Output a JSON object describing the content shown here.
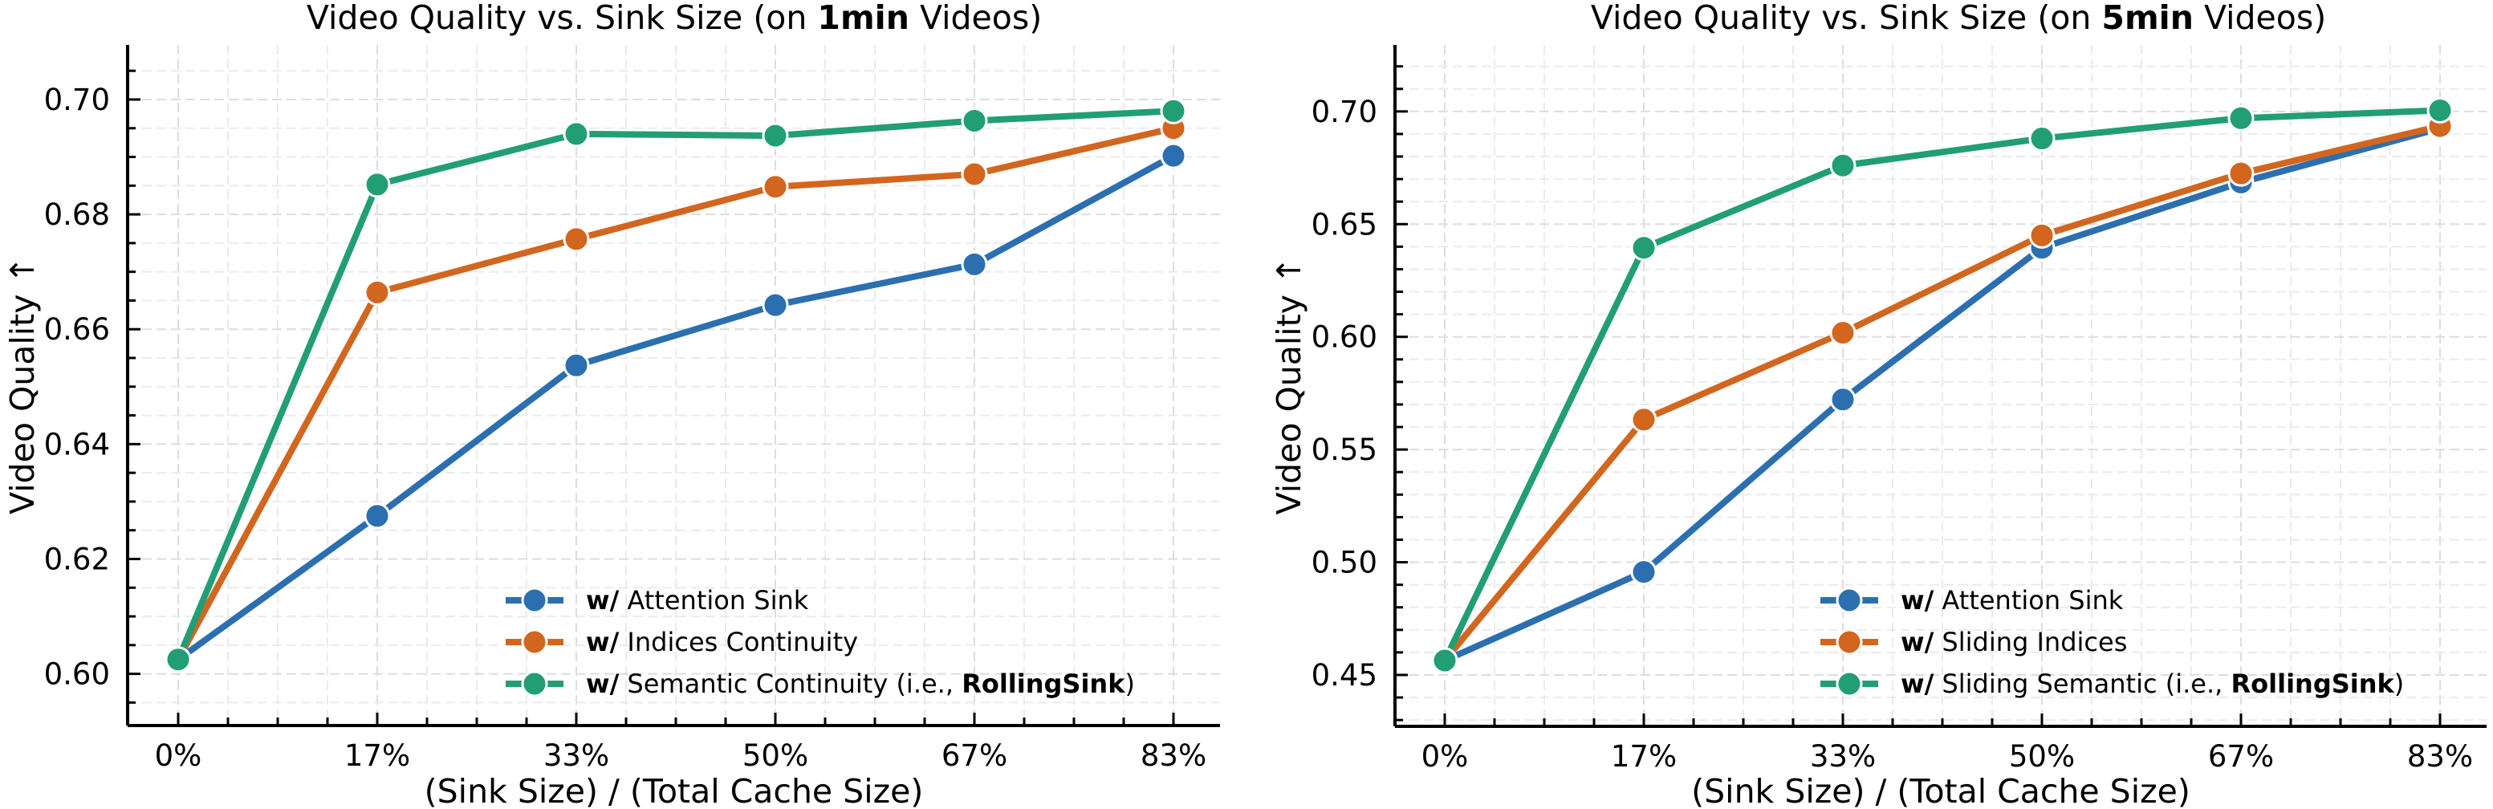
{
  "chart_data": [
    {
      "type": "line",
      "title_parts": [
        {
          "text": "Video Quality vs. Sink Size (on ",
          "bold": false
        },
        {
          "text": "1min",
          "bold": true
        },
        {
          "text": " Videos)",
          "bold": false
        }
      ],
      "xlabel": "(Sink Size) / (Total Cache Size)",
      "ylabel": "Video Quality ↑",
      "categories": [
        "0%",
        "17%",
        "33%",
        "50%",
        "67%",
        "83%"
      ],
      "ylim": [
        0.591,
        0.7095
      ],
      "yticks": [
        0.6,
        0.62,
        0.64,
        0.66,
        0.68,
        0.7
      ],
      "ytick_labels": [
        "0.60",
        "0.62",
        "0.64",
        "0.66",
        "0.68",
        "0.70"
      ],
      "y_minor_step": 0.005,
      "grid": true,
      "legend_position": "lower-right",
      "series": [
        {
          "name": "Attention Sink",
          "prefix": "w/",
          "suffix_bold": "",
          "color": "#2c6fb0",
          "values": [
            0.6025,
            0.6275,
            0.6537,
            0.6642,
            0.6713,
            0.6902
          ]
        },
        {
          "name": "Indices Continuity",
          "prefix": "w/",
          "suffix_bold": "",
          "color": "#d2661f",
          "values": [
            0.6025,
            0.6664,
            0.6757,
            0.6848,
            0.687,
            0.695
          ]
        },
        {
          "name": "Semantic Continuity (i.e., ",
          "prefix": "w/",
          "suffix_bold": "RollingSink",
          "suffix_end": ")",
          "color": "#229e74",
          "values": [
            0.6025,
            0.6852,
            0.694,
            0.6937,
            0.6963,
            0.698
          ]
        }
      ]
    },
    {
      "type": "line",
      "title_parts": [
        {
          "text": "Video Quality vs. Sink Size (on ",
          "bold": false
        },
        {
          "text": "5min",
          "bold": true
        },
        {
          "text": " Videos)",
          "bold": false
        }
      ],
      "xlabel": "(Sink Size) / (Total Cache Size)",
      "ylabel": "Video Quality ↑",
      "categories": [
        "0%",
        "17%",
        "33%",
        "50%",
        "67%",
        "83%"
      ],
      "ylim": [
        0.4272,
        0.7295
      ],
      "yticks": [
        0.45,
        0.5,
        0.55,
        0.6,
        0.65,
        0.7
      ],
      "ytick_labels": [
        "0.45",
        "0.50",
        "0.55",
        "0.60",
        "0.65",
        "0.70"
      ],
      "y_minor_step": 0.01,
      "grid": true,
      "legend_position": "lower-right",
      "series": [
        {
          "name": "Attention Sink",
          "prefix": "w/",
          "suffix_bold": "",
          "color": "#2c6fb0",
          "values": [
            0.4564,
            0.4957,
            0.5722,
            0.6395,
            0.6685,
            0.6925
          ]
        },
        {
          "name": "Sliding Indices",
          "prefix": "w/",
          "suffix_bold": "",
          "color": "#d2661f",
          "values": [
            0.4564,
            0.5633,
            0.6018,
            0.645,
            0.6725,
            0.6935
          ]
        },
        {
          "name": "Sliding Semantic (i.e., ",
          "prefix": "w/",
          "suffix_bold": "RollingSink",
          "suffix_end": ")",
          "color": "#229e74",
          "values": [
            0.4564,
            0.6395,
            0.676,
            0.688,
            0.697,
            0.7005
          ]
        }
      ]
    }
  ]
}
